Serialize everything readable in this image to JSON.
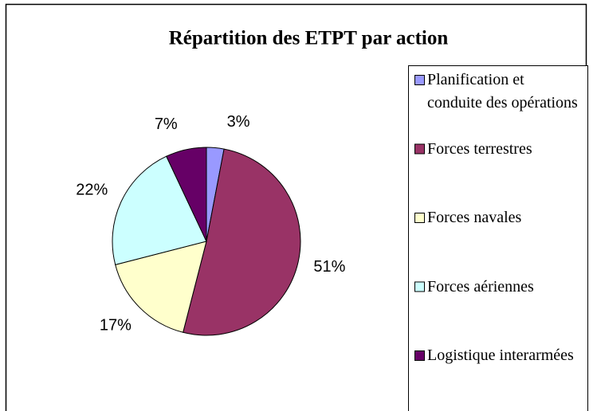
{
  "chart_data": {
    "type": "pie",
    "title": "Répartition des ETPT par action",
    "categories": [
      "Planification et conduite des opérations",
      "Forces terrestres",
      "Forces navales",
      "Forces aériennes",
      "Logistique interarmées"
    ],
    "values": [
      3,
      51,
      17,
      22,
      7
    ],
    "value_labels": [
      "3%",
      "51%",
      "17%",
      "22%",
      "7%"
    ],
    "colors": [
      "#9999ff",
      "#993366",
      "#ffffcc",
      "#ccffff",
      "#660066"
    ],
    "legend": "right"
  }
}
